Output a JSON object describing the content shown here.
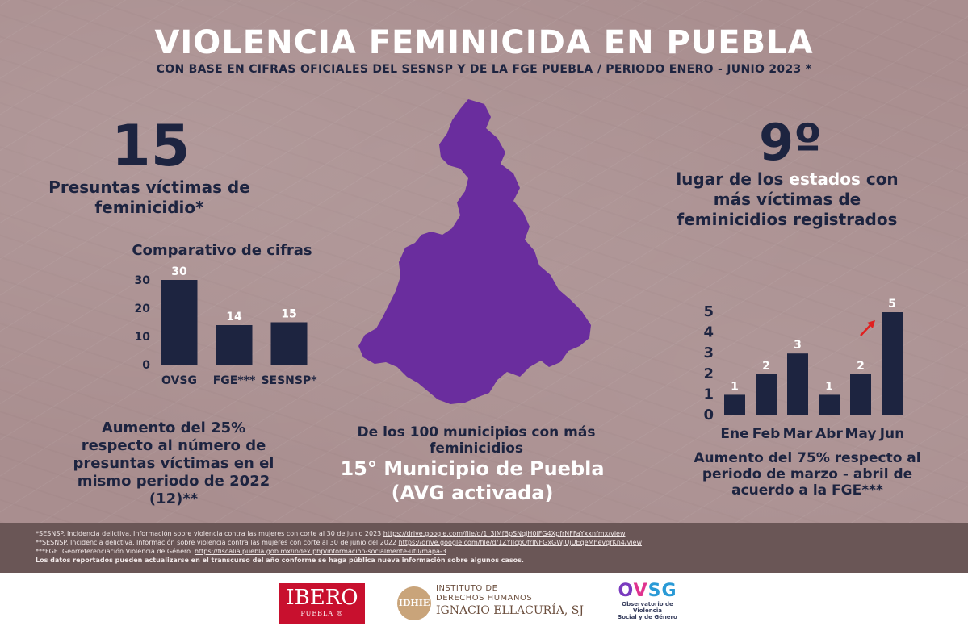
{
  "header": {
    "title": "VIOLENCIA FEMINICIDA EN PUEBLA",
    "subtitle": "CON BASE EN CIFRAS OFICIALES DEL SESNSP Y DE LA FGE PUEBLA / PERIODO ENERO - JUNIO  2023 *"
  },
  "left_stat": {
    "number": "15",
    "label": "Presuntas víctimas de feminicidio*"
  },
  "right_stat": {
    "number": "9º",
    "label_pre": "lugar de los ",
    "label_highlight": "estados",
    "label_post": " con más víctimas de feminicidios registrados"
  },
  "comparison": {
    "title": "Comparativo de cifras",
    "caption": "Aumento del 25% respecto al número de presuntas víctimas en el mismo periodo de 2022 (12)**"
  },
  "center": {
    "caption": "De los 100 municipios con más feminicidios",
    "highlight": "15° Municipio de Puebla (AVG activada)"
  },
  "monthly": {
    "caption": "Aumento del 75% respecto al periodo de marzo - abril de acuerdo a la FGE***"
  },
  "chart_data": [
    {
      "type": "bar",
      "title": "Comparativo de cifras",
      "categories": [
        "OVSG",
        "FGE***",
        "SESNSP*"
      ],
      "values": [
        30,
        14,
        15
      ],
      "ylim": [
        0,
        30
      ],
      "yticks": [
        0,
        10,
        20,
        30
      ],
      "bar_color": "#1d2440",
      "grid": false
    },
    {
      "type": "bar",
      "categories": [
        "Ene",
        "Feb",
        "Mar",
        "Abr",
        "May",
        "Jun"
      ],
      "values": [
        1,
        2,
        3,
        1,
        2,
        5
      ],
      "ylim": [
        0,
        5
      ],
      "yticks": [
        0,
        1,
        2,
        3,
        4,
        5
      ],
      "bar_color": "#1d2440",
      "arrow_color": "#e02020",
      "grid": false
    }
  ],
  "footer": {
    "line1_text": "*SESNSP. Incidencia delictiva. Información sobre violencia contra las mujeres con corte al 30 de junio 2023 ",
    "line1_link": "https://drive.google.com/file/d/1_3lMfBpSNqjH0iFG4XpfrNFFaYxxnfmx/view",
    "line2_text": "**SESNSP. Incidencia delictiva. Información sobre violencia contra las mujeres con corte al 30 de junio del 2022 ",
    "line2_link": "https://drive.google.com/file/d/1ZYIIcpOfrINFGxGWJUjUEqeMhevqrKn4/view",
    "line3_text": "***FGE. Georreferenciación Violencia de Género. ",
    "line3_link": "https://fiscalia.puebla.gob.mx/index.php/informacion-socialmente-util/mapa-3",
    "line4": "Los datos reportados pueden actualizarse en el transcurso del año conforme se haga pública nueva información sobre algunos casos."
  },
  "logos": {
    "ibero_name": "IBERO",
    "ibero_sub": "PUEBLA ®",
    "idhie_mark": "IDHIE",
    "idhie_line1": "INSTITUTO DE",
    "idhie_line2": "DERECHOS HUMANOS",
    "idhie_line3": "IGNACIO ELLACURÍA, SJ",
    "ovsg_o": "O",
    "ovsg_v": "V",
    "ovsg_sg": "SG",
    "ovsg_sub1": "Observatorio de Violencia",
    "ovsg_sub2": "Social y de Género"
  },
  "colors": {
    "background": "#a98e8f",
    "navy": "#1d2440",
    "purple": "#6a2d9e",
    "footer": "#6a5656"
  }
}
